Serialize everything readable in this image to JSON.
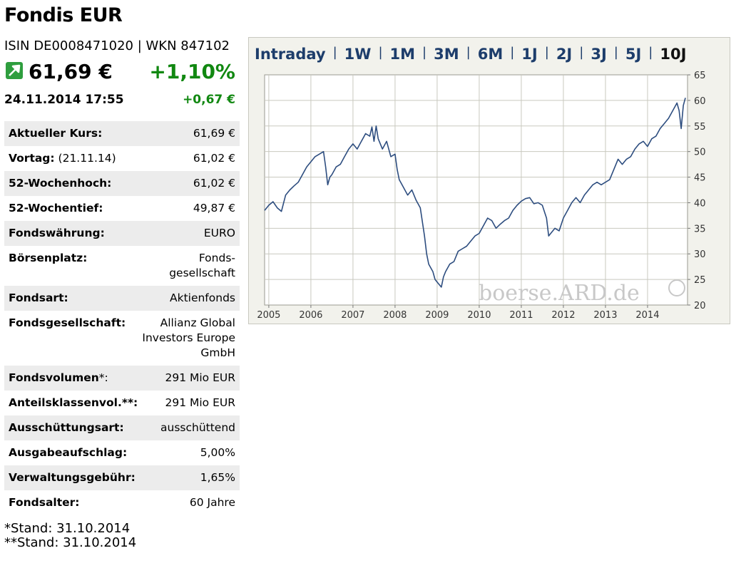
{
  "fund": {
    "name": "Fondis EUR",
    "isin_line": "ISIN DE0008471020 | WKN 847102",
    "price": "61,69 €",
    "change_pct": "+1,10%",
    "datetime": "24.11.2014  17:55",
    "change_abs": "+0,67 €",
    "trend_icon": "arrow-up-right-icon",
    "up_color": "#118811"
  },
  "details": [
    {
      "label": "Aktueller Kurs:",
      "sub": "",
      "value": "61,69 €"
    },
    {
      "label": "Vortag:",
      "sub": " (21.11.14)",
      "value": "61,02 €"
    },
    {
      "label": "52-Wochenhoch:",
      "sub": "",
      "value": "61,02 €"
    },
    {
      "label": "52-Wochentief:",
      "sub": "",
      "value": "49,87 €"
    },
    {
      "label": "Fondswährung:",
      "sub": "",
      "value": "EURO"
    },
    {
      "label": "Börsenplatz:",
      "sub": "",
      "value": "Fonds-\ngesellschaft"
    },
    {
      "label": "Fondsart:",
      "sub": "",
      "value": "Aktienfonds"
    },
    {
      "label": "Fondsgesellschaft:",
      "sub": "",
      "value": "Allianz Global\nInvestors Europe\nGmbH"
    },
    {
      "label": "Fondsvolumen",
      "sub": "*:",
      "value": "291 Mio EUR"
    },
    {
      "label": "Anteilsklassenvol.**:",
      "sub": "",
      "value": "291 Mio EUR"
    },
    {
      "label": "Ausschüttungsart:",
      "sub": "",
      "value": "ausschüttend"
    },
    {
      "label": "Ausgabeaufschlag:",
      "sub": "",
      "value": "5,00%"
    },
    {
      "label": "Verwaltungsgebühr:",
      "sub": "",
      "value": "1,65%"
    },
    {
      "label": "Fondsalter:",
      "sub": "",
      "value": "60 Jahre"
    }
  ],
  "footnotes": [
    "*Stand: 31.10.2014",
    "**Stand: 31.10.2014"
  ],
  "tabs": [
    {
      "label": "Intraday",
      "active": false
    },
    {
      "label": "1W",
      "active": false
    },
    {
      "label": "1M",
      "active": false
    },
    {
      "label": "3M",
      "active": false
    },
    {
      "label": "6M",
      "active": false
    },
    {
      "label": "1J",
      "active": false
    },
    {
      "label": "2J",
      "active": false
    },
    {
      "label": "3J",
      "active": false
    },
    {
      "label": "5J",
      "active": false
    },
    {
      "label": "10J",
      "active": true
    }
  ],
  "watermark": "boerse.ARD.de",
  "chart_data": {
    "type": "line",
    "title": "",
    "xlabel": "",
    "ylabel": "",
    "xlim": [
      2004.9,
      2014.95
    ],
    "ylim": [
      20,
      65
    ],
    "yticks": [
      20,
      25,
      30,
      35,
      40,
      45,
      50,
      55,
      60,
      65
    ],
    "xticks": [
      "2005",
      "2006",
      "2007",
      "2008",
      "2009",
      "2010",
      "2011",
      "2012",
      "2013",
      "2014"
    ],
    "grid": true,
    "line_color": "#2d4d7f",
    "series": [
      {
        "x": [
          2004.9,
          2005.0,
          2005.1,
          2005.2,
          2005.3,
          2005.4,
          2005.5,
          2005.6,
          2005.7,
          2005.8,
          2005.9,
          2006.0,
          2006.1,
          2006.2,
          2006.3,
          2006.35,
          2006.4,
          2006.45,
          2006.5,
          2006.6,
          2006.7,
          2006.8,
          2006.9,
          2007.0,
          2007.1,
          2007.2,
          2007.3,
          2007.4,
          2007.45,
          2007.5,
          2007.55,
          2007.6,
          2007.7,
          2007.8,
          2007.9,
          2008.0,
          2008.05,
          2008.1,
          2008.2,
          2008.3,
          2008.4,
          2008.5,
          2008.6,
          2008.7,
          2008.75,
          2008.8,
          2008.9,
          2008.95,
          2009.0,
          2009.1,
          2009.15,
          2009.2,
          2009.3,
          2009.4,
          2009.5,
          2009.6,
          2009.7,
          2009.8,
          2009.9,
          2010.0,
          2010.1,
          2010.2,
          2010.3,
          2010.4,
          2010.5,
          2010.6,
          2010.7,
          2010.8,
          2010.9,
          2011.0,
          2011.1,
          2011.2,
          2011.3,
          2011.4,
          2011.5,
          2011.6,
          2011.65,
          2011.7,
          2011.8,
          2011.9,
          2012.0,
          2012.1,
          2012.2,
          2012.3,
          2012.4,
          2012.5,
          2012.6,
          2012.7,
          2012.8,
          2012.9,
          2013.0,
          2013.1,
          2013.2,
          2013.3,
          2013.4,
          2013.5,
          2013.6,
          2013.7,
          2013.8,
          2013.9,
          2014.0,
          2014.1,
          2014.2,
          2014.3,
          2014.4,
          2014.5,
          2014.6,
          2014.7,
          2014.75,
          2014.8,
          2014.85,
          2014.9
        ],
        "y": [
          38.5,
          39.5,
          40.2,
          39.0,
          38.3,
          41.5,
          42.5,
          43.3,
          44.0,
          45.5,
          47.0,
          48.0,
          49.0,
          49.5,
          50.0,
          47.0,
          43.5,
          45.0,
          45.5,
          47.0,
          47.5,
          49.0,
          50.5,
          51.5,
          50.5,
          52.0,
          53.5,
          53.0,
          54.8,
          52.0,
          55.0,
          52.5,
          50.5,
          52.0,
          49.0,
          49.5,
          46.5,
          44.5,
          43.0,
          41.5,
          42.5,
          40.5,
          39.0,
          33.5,
          30.0,
          28.0,
          26.5,
          25.0,
          24.5,
          23.5,
          25.5,
          26.5,
          28.0,
          28.5,
          30.5,
          31.0,
          31.5,
          32.5,
          33.5,
          34.0,
          35.5,
          37.0,
          36.5,
          35.0,
          35.8,
          36.5,
          37.0,
          38.5,
          39.5,
          40.3,
          40.8,
          41.0,
          39.8,
          40.0,
          39.5,
          37.0,
          33.5,
          34.0,
          35.0,
          34.5,
          37.0,
          38.5,
          40.0,
          41.0,
          40.0,
          41.5,
          42.5,
          43.5,
          44.0,
          43.5,
          44.0,
          44.5,
          46.5,
          48.5,
          47.5,
          48.5,
          49.0,
          50.5,
          51.5,
          52.0,
          51.0,
          52.5,
          53.0,
          54.5,
          55.5,
          56.5,
          58.0,
          59.5,
          58.0,
          54.5,
          59.0,
          60.5
        ]
      }
    ]
  }
}
